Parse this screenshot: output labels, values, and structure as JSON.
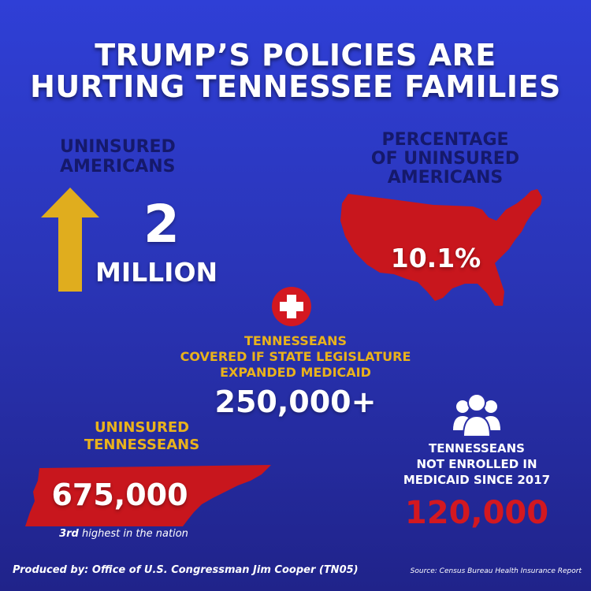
{
  "title": {
    "line1": "TRUMP’S POLICIES ARE",
    "line2": "HURTING TENNESSEE FAMILIES"
  },
  "uninsured_americans": {
    "label_line1": "UNINSURED",
    "label_line2": "AMERICANS",
    "number": "2",
    "unit": "MILLION",
    "icon": "arrow-up-icon",
    "color": "#e0ad1e"
  },
  "percentage": {
    "label_line1": "PERCENTAGE",
    "label_line2": "OF UNINSURED",
    "label_line3": "AMERICANS",
    "value": "10.1%",
    "icon": "usa-map-icon",
    "color": "#c8161d"
  },
  "medicaid_expansion": {
    "icon": "medical-cross-icon",
    "label_line1": "TENNESSEANS",
    "label_line2": "COVERED IF STATE LEGISLATURE",
    "label_line3": "EXPANDED MEDICAID",
    "value": "250,000+"
  },
  "uninsured_tennesseans": {
    "label_line1": "UNINSURED",
    "label_line2": "TENNESSEANS",
    "value": "675,000",
    "note_bold": "3rd",
    "note_rest": " highest in the nation",
    "icon": "tennessee-map-icon"
  },
  "not_enrolled": {
    "icon": "people-group-icon",
    "label_line1": "TENNESSEANS",
    "label_line2": "NOT ENROLLED IN",
    "label_line3": "MEDICAID SINCE 2017",
    "value": "120,000"
  },
  "footer": {
    "produced_by": "Produced by: Office of U.S. Congressman Jim Cooper (TN05)",
    "source": "Source: Census Bureau Health Insurance Report"
  },
  "colors": {
    "background_top": "#2f3fd6",
    "background_bottom": "#20238a",
    "navy": "#15196b",
    "gold": "#e9b21c",
    "red": "#d31820"
  }
}
